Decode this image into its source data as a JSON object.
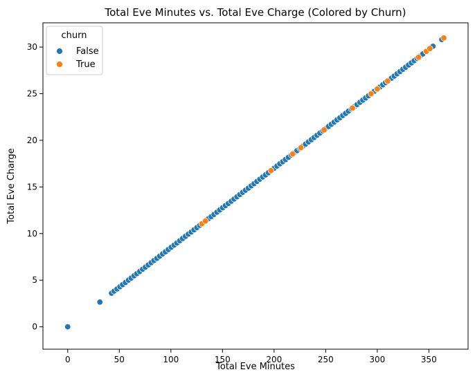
{
  "chart_data": {
    "type": "scatter",
    "title": "Total Eve Minutes vs. Total Eve Charge (Colored by Churn)",
    "xlabel": "Total Eve Minutes",
    "ylabel": "Total Eve Charge",
    "xlim": [
      -24,
      388
    ],
    "ylim": [
      -2.4,
      32.6
    ],
    "xticks": [
      0,
      50,
      100,
      150,
      200,
      250,
      300,
      350
    ],
    "yticks": [
      0,
      5,
      10,
      15,
      20,
      25,
      30
    ],
    "grid": false,
    "legend": {
      "title": "churn",
      "placement": "top-left",
      "entries": [
        {
          "label": "False",
          "color": "#1f77b4"
        },
        {
          "label": "True",
          "color": "#ff7f0e"
        }
      ]
    },
    "series": [
      {
        "name": "False",
        "color": "#1f77b4",
        "x": [
          0,
          31.2,
          42.5,
          45.0,
          47.8,
          50.6,
          53.2,
          56.0,
          58.9,
          61.5,
          64.3,
          67.0,
          69.8,
          72.6,
          75.3,
          78.1,
          80.9,
          83.6,
          86.4,
          89.2,
          92.0,
          94.7,
          97.5,
          100.3,
          103.1,
          105.8,
          108.6,
          111.4,
          114.1,
          116.9,
          119.7,
          122.4,
          125.2,
          128.0,
          130.8,
          133.5,
          136.3,
          139.1,
          141.8,
          144.6,
          147.4,
          150.2,
          152.9,
          155.7,
          158.5,
          161.2,
          164.0,
          166.8,
          169.6,
          172.3,
          175.1,
          177.9,
          180.6,
          183.4,
          186.2,
          189.0,
          191.7,
          194.5,
          197.3,
          200.0,
          202.8,
          205.6,
          208.4,
          211.1,
          213.9,
          216.7,
          219.4,
          222.2,
          225.0,
          227.8,
          230.5,
          233.3,
          236.1,
          238.8,
          241.6,
          244.4,
          247.2,
          249.9,
          252.7,
          255.5,
          258.2,
          261.0,
          263.8,
          266.6,
          269.3,
          272.1,
          274.9,
          277.6,
          280.4,
          283.2,
          286.0,
          288.7,
          291.5,
          294.3,
          297.0,
          299.8,
          302.6,
          305.4,
          308.1,
          310.9,
          313.7,
          316.4,
          319.2,
          322.0,
          324.8,
          327.5,
          330.3,
          333.1,
          335.8,
          338.6,
          341.4,
          344.2,
          354.0,
          362.5
        ],
        "y": [
          0.0,
          2.65,
          3.61,
          3.83,
          4.06,
          4.3,
          4.52,
          4.76,
          5.01,
          5.23,
          5.47,
          5.7,
          5.93,
          6.17,
          6.4,
          6.64,
          6.88,
          7.11,
          7.34,
          7.58,
          7.82,
          8.05,
          8.29,
          8.53,
          8.76,
          8.99,
          9.23,
          9.47,
          9.7,
          9.94,
          10.17,
          10.4,
          10.64,
          10.88,
          11.12,
          11.35,
          11.59,
          11.82,
          12.05,
          12.29,
          12.53,
          12.77,
          13.0,
          13.23,
          13.47,
          13.7,
          13.94,
          14.18,
          14.42,
          14.65,
          14.88,
          15.12,
          15.35,
          15.59,
          15.83,
          16.07,
          16.29,
          16.53,
          16.77,
          17.0,
          17.24,
          17.48,
          17.71,
          17.94,
          18.18,
          18.42,
          18.65,
          18.89,
          19.13,
          19.36,
          19.59,
          19.83,
          20.07,
          20.3,
          20.54,
          20.77,
          21.01,
          21.24,
          21.48,
          21.72,
          21.95,
          22.19,
          22.42,
          22.66,
          22.89,
          23.13,
          23.37,
          23.6,
          23.83,
          24.07,
          24.31,
          24.54,
          24.78,
          25.02,
          25.25,
          25.48,
          25.72,
          25.96,
          26.19,
          26.43,
          26.66,
          26.89,
          27.13,
          27.37,
          27.61,
          27.84,
          28.08,
          28.31,
          28.54,
          28.78,
          29.02,
          29.26,
          30.09,
          30.81
        ]
      },
      {
        "name": "True",
        "color": "#ff7f0e",
        "x": [
          130.0,
          133.5,
          197.0,
          218.0,
          226.0,
          248.5,
          276.0,
          294.0,
          300.0,
          310.0,
          340.0,
          347.5,
          351.0,
          364.5
        ],
        "y": [
          11.05,
          11.35,
          16.75,
          18.53,
          19.21,
          21.12,
          23.46,
          24.99,
          25.5,
          26.35,
          28.9,
          29.54,
          29.84,
          30.98
        ]
      }
    ]
  }
}
